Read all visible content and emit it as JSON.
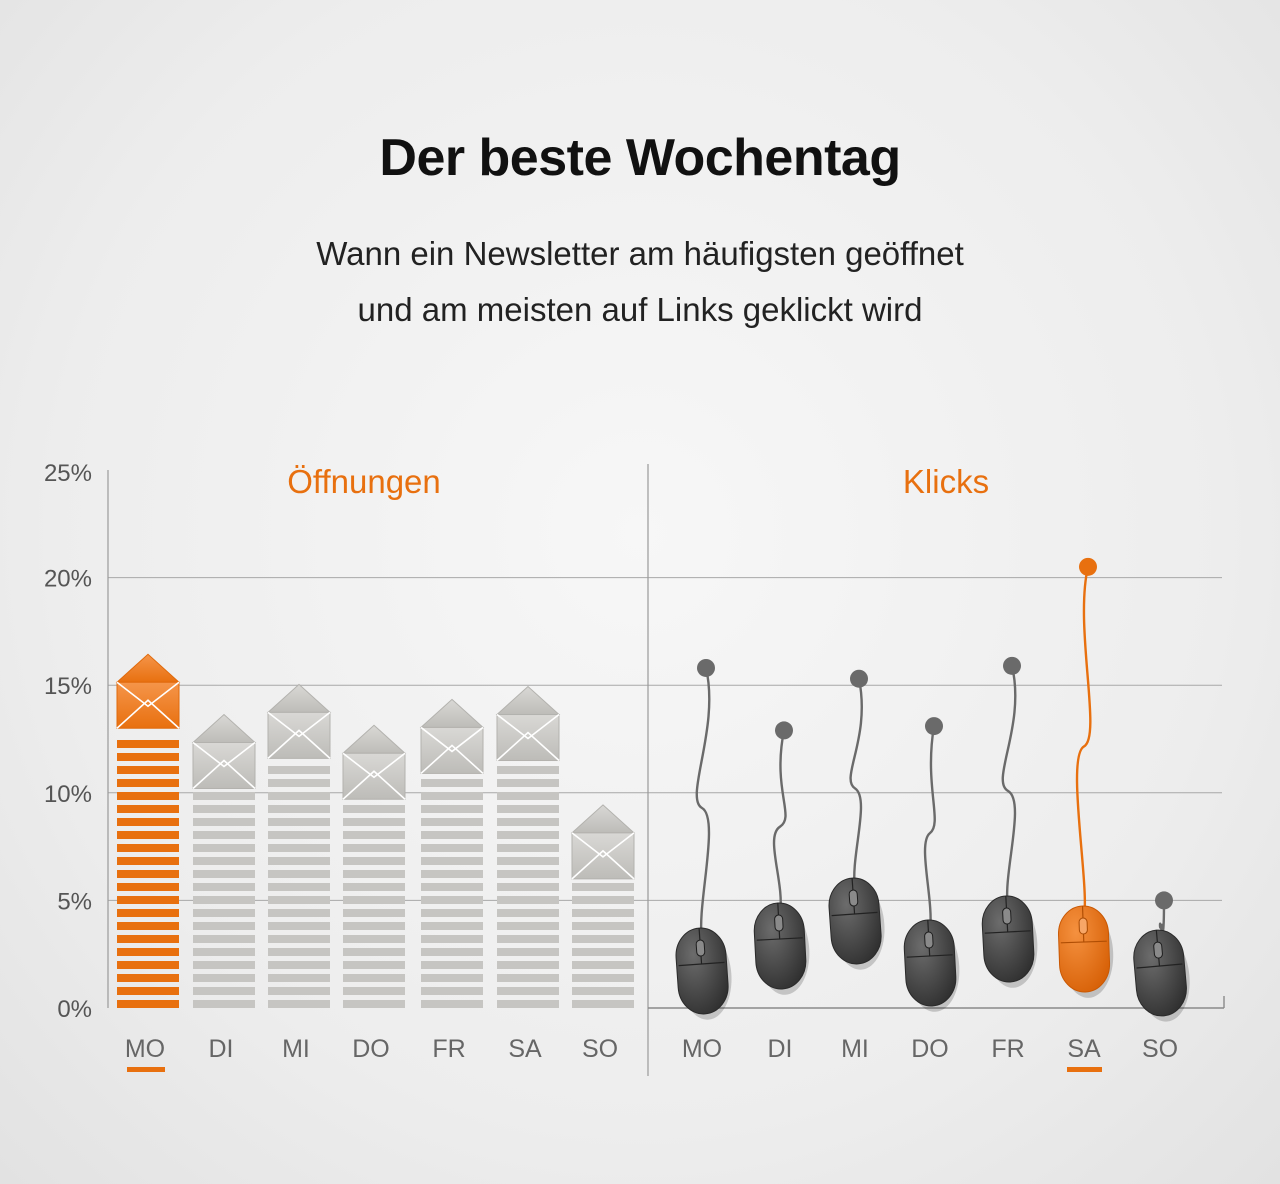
{
  "title": "Der beste Wochentag",
  "subtitle_lines": [
    "Wann ein Newsletter am häufigsten geöffnet",
    "und am meisten auf Links geklickt wird"
  ],
  "colors": {
    "accent": "#e8700f",
    "neutral_bar": "#c6c5c2",
    "mouse": "#505050",
    "cable": "#6a6a6a",
    "gridline": "#a8a8a8",
    "axis_label": "#555555"
  },
  "chart_data": [
    {
      "type": "bar",
      "title": "Öffnungen",
      "categories": [
        "MO",
        "DI",
        "MI",
        "DO",
        "FR",
        "SA",
        "SO"
      ],
      "values": [
        13.0,
        10.2,
        11.6,
        9.7,
        10.9,
        11.5,
        6.0
      ],
      "highlight": "MO",
      "ylim": [
        0,
        25
      ],
      "yticks": [
        "0%",
        "5%",
        "10%",
        "15%",
        "20%",
        "25%"
      ],
      "grid": true,
      "icon": "envelope-icon"
    },
    {
      "type": "scatter",
      "title": "Klicks",
      "categories": [
        "MO",
        "DI",
        "MI",
        "DO",
        "FR",
        "SA",
        "SO"
      ],
      "values": [
        15.8,
        12.9,
        15.3,
        13.1,
        15.9,
        20.5,
        5.0
      ],
      "highlight": "SA",
      "ylim": [
        0,
        25
      ],
      "grid": true,
      "icon": "computer-mouse-icon"
    }
  ]
}
